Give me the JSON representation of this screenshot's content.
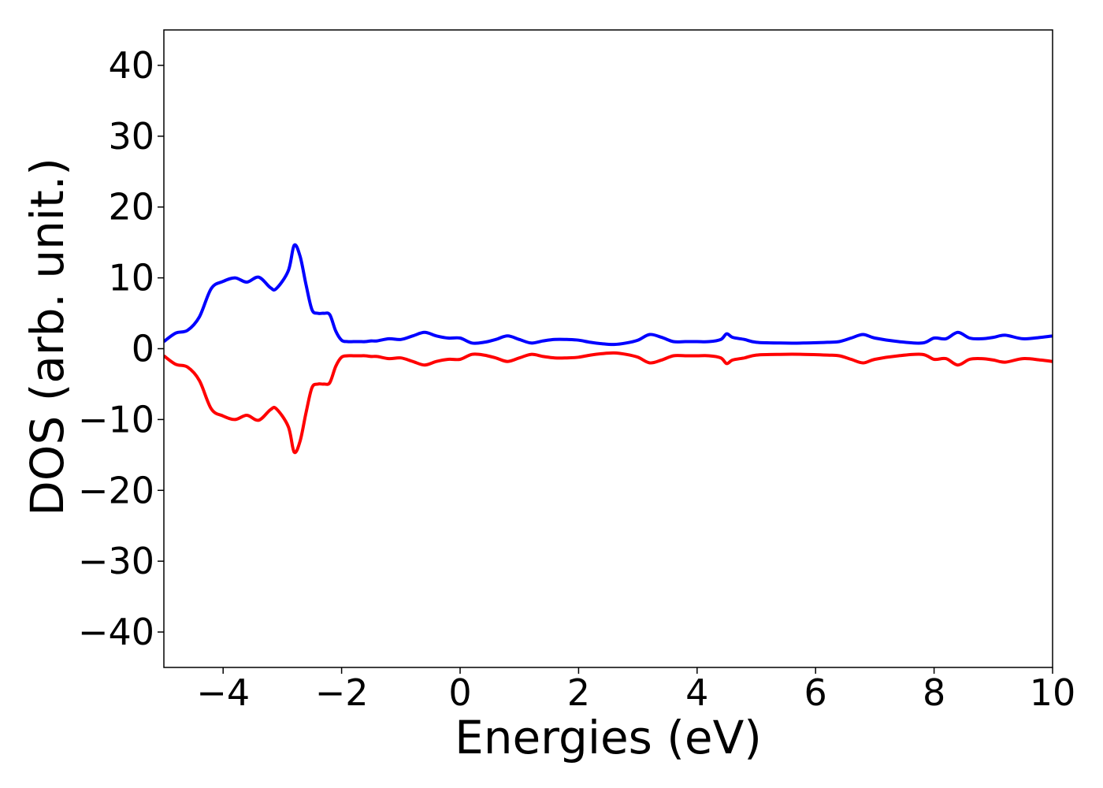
{
  "chart_data": {
    "type": "line",
    "title": "",
    "xlabel": "Energies (eV)",
    "ylabel": "DOS (arb. unit.)",
    "xlim": [
      -5,
      10
    ],
    "ylim": [
      -45,
      45
    ],
    "xticks": [
      -4,
      -2,
      0,
      2,
      4,
      6,
      8,
      10
    ],
    "xtick_labels": [
      "−4",
      "−2",
      "0",
      "2",
      "4",
      "6",
      "8",
      "10"
    ],
    "yticks": [
      40,
      30,
      20,
      10,
      0,
      -10,
      -20,
      -30,
      -40
    ],
    "ytick_labels": [
      "40",
      "30",
      "20",
      "10",
      "0",
      "−10",
      "−20",
      "−30",
      "−40"
    ],
    "grid": false,
    "legend": "none",
    "series": [
      {
        "color": "#0000ff",
        "x": [
          -5.0,
          -4.8,
          -4.6,
          -4.4,
          -4.2,
          -4.0,
          -3.8,
          -3.6,
          -3.4,
          -3.2,
          -3.1,
          -2.9,
          -2.8,
          -2.7,
          -2.6,
          -2.5,
          -2.4,
          -2.3,
          -2.2,
          -2.1,
          -2.0,
          -1.9,
          -1.8,
          -1.7,
          -1.6,
          -1.5,
          -1.4,
          -1.2,
          -1.0,
          -0.8,
          -0.6,
          -0.4,
          -0.2,
          0.0,
          0.2,
          0.4,
          0.6,
          0.8,
          1.0,
          1.2,
          1.4,
          1.6,
          1.8,
          2.0,
          2.2,
          2.4,
          2.6,
          2.8,
          3.0,
          3.2,
          3.4,
          3.6,
          3.8,
          4.0,
          4.2,
          4.4,
          4.5,
          4.6,
          4.8,
          5.0,
          5.4,
          5.8,
          6.2,
          6.4,
          6.6,
          6.8,
          7.0,
          7.4,
          7.8,
          8.0,
          8.2,
          8.4,
          8.6,
          8.8,
          9.0,
          9.2,
          9.5,
          9.8,
          10.0
        ],
        "y": [
          1.0,
          2.2,
          2.6,
          4.5,
          8.5,
          9.5,
          10.0,
          9.4,
          10.1,
          8.6,
          8.5,
          11.0,
          14.6,
          13.0,
          9.0,
          5.5,
          5.0,
          5.0,
          4.8,
          2.5,
          1.2,
          1.0,
          1.0,
          1.0,
          1.0,
          1.1,
          1.1,
          1.4,
          1.3,
          1.8,
          2.3,
          1.8,
          1.5,
          1.5,
          0.8,
          0.9,
          1.3,
          1.8,
          1.3,
          0.8,
          1.1,
          1.3,
          1.3,
          1.2,
          0.9,
          0.7,
          0.6,
          0.8,
          1.2,
          2.0,
          1.6,
          1.0,
          1.0,
          1.0,
          1.0,
          1.3,
          2.1,
          1.6,
          1.3,
          0.9,
          0.8,
          0.8,
          0.9,
          1.0,
          1.5,
          2.0,
          1.5,
          1.0,
          0.8,
          1.5,
          1.4,
          2.3,
          1.5,
          1.4,
          1.6,
          1.9,
          1.4,
          1.6,
          1.8
        ]
      },
      {
        "color": "#ff0000",
        "x": [
          -5.0,
          -4.8,
          -4.6,
          -4.4,
          -4.2,
          -4.0,
          -3.8,
          -3.6,
          -3.4,
          -3.2,
          -3.1,
          -2.9,
          -2.8,
          -2.7,
          -2.6,
          -2.5,
          -2.4,
          -2.3,
          -2.2,
          -2.1,
          -2.0,
          -1.9,
          -1.8,
          -1.7,
          -1.6,
          -1.5,
          -1.4,
          -1.2,
          -1.0,
          -0.8,
          -0.6,
          -0.4,
          -0.2,
          0.0,
          0.2,
          0.4,
          0.6,
          0.8,
          1.0,
          1.2,
          1.4,
          1.6,
          1.8,
          2.0,
          2.2,
          2.4,
          2.6,
          2.8,
          3.0,
          3.2,
          3.4,
          3.6,
          3.8,
          4.0,
          4.2,
          4.4,
          4.5,
          4.6,
          4.8,
          5.0,
          5.4,
          5.8,
          6.2,
          6.4,
          6.6,
          6.8,
          7.0,
          7.4,
          7.8,
          8.0,
          8.2,
          8.4,
          8.6,
          8.8,
          9.0,
          9.2,
          9.5,
          9.8,
          10.0
        ],
        "y": [
          -1.0,
          -2.2,
          -2.6,
          -4.5,
          -8.5,
          -9.5,
          -10.0,
          -9.4,
          -10.1,
          -8.6,
          -8.5,
          -11.0,
          -14.6,
          -13.0,
          -9.0,
          -5.5,
          -5.0,
          -5.0,
          -4.8,
          -2.5,
          -1.2,
          -1.0,
          -1.0,
          -1.0,
          -1.0,
          -1.1,
          -1.1,
          -1.4,
          -1.3,
          -1.8,
          -2.3,
          -1.8,
          -1.5,
          -1.5,
          -0.8,
          -0.9,
          -1.3,
          -1.8,
          -1.3,
          -0.8,
          -1.1,
          -1.3,
          -1.3,
          -1.2,
          -0.9,
          -0.7,
          -0.6,
          -0.8,
          -1.2,
          -2.0,
          -1.6,
          -1.0,
          -1.0,
          -1.0,
          -1.0,
          -1.3,
          -2.1,
          -1.6,
          -1.3,
          -0.9,
          -0.8,
          -0.8,
          -0.9,
          -1.0,
          -1.5,
          -2.0,
          -1.5,
          -1.0,
          -0.8,
          -1.5,
          -1.4,
          -2.3,
          -1.5,
          -1.4,
          -1.6,
          -1.9,
          -1.4,
          -1.6,
          -1.8
        ]
      }
    ]
  }
}
